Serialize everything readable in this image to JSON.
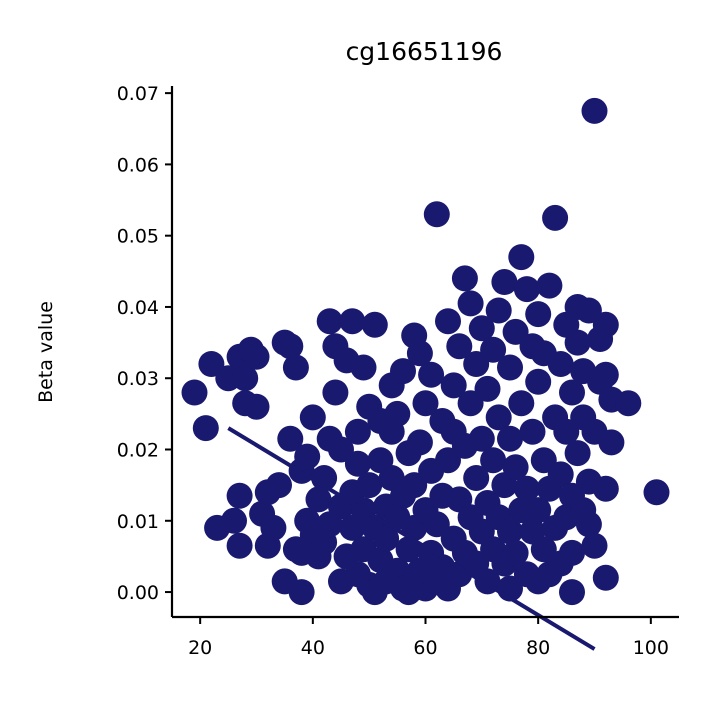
{
  "chart_data": {
    "type": "scatter",
    "title": "cg16651196",
    "xlabel": "",
    "ylabel": "Beta value",
    "xlim": [
      15,
      105
    ],
    "ylim": [
      -0.0035,
      0.071
    ],
    "x_ticks": [
      20,
      40,
      60,
      80,
      100
    ],
    "y_ticks": [
      0.0,
      0.01,
      0.02,
      0.03,
      0.04,
      0.05,
      0.06,
      0.07
    ],
    "x_tick_labels": [
      "20",
      "40",
      "60",
      "80",
      "100"
    ],
    "y_tick_labels": [
      "0.00",
      "0.01",
      "0.02",
      "0.03",
      "0.04",
      "0.05",
      "0.06",
      "0.07"
    ],
    "grid": false,
    "color": "#191970",
    "trend_line": {
      "x": [
        25,
        90
      ],
      "y": [
        0.023,
        -0.008
      ]
    },
    "points": [
      [
        19,
        0.028
      ],
      [
        21,
        0.023
      ],
      [
        22,
        0.032
      ],
      [
        23,
        0.009
      ],
      [
        25,
        0.03
      ],
      [
        26,
        0.01
      ],
      [
        27,
        0.0065
      ],
      [
        27,
        0.0135
      ],
      [
        27,
        0.033
      ],
      [
        28,
        0.0265
      ],
      [
        28,
        0.03
      ],
      [
        29,
        0.034
      ],
      [
        30,
        0.026
      ],
      [
        30,
        0.033
      ],
      [
        31,
        0.011
      ],
      [
        32,
        0.0065
      ],
      [
        32,
        0.014
      ],
      [
        33,
        0.009
      ],
      [
        34,
        0.015
      ],
      [
        35,
        0.0015
      ],
      [
        35,
        0.035
      ],
      [
        36,
        0.0215
      ],
      [
        36,
        0.0345
      ],
      [
        37,
        0.006
      ],
      [
        37,
        0.0315
      ],
      [
        38,
        0.0
      ],
      [
        38,
        0.0055
      ],
      [
        38,
        0.017
      ],
      [
        39,
        0.01
      ],
      [
        39,
        0.019
      ],
      [
        40,
        0.008
      ],
      [
        40,
        0.0245
      ],
      [
        41,
        0.005
      ],
      [
        41,
        0.013
      ],
      [
        42,
        0.016
      ],
      [
        42,
        0.007
      ],
      [
        43,
        0.0095
      ],
      [
        43,
        0.038
      ],
      [
        43,
        0.0215
      ],
      [
        44,
        0.0345
      ],
      [
        44,
        0.028
      ],
      [
        45,
        0.0015
      ],
      [
        45,
        0.012
      ],
      [
        45,
        0.02
      ],
      [
        46,
        0.005
      ],
      [
        46,
        0.0325
      ],
      [
        47,
        0.014
      ],
      [
        47,
        0.038
      ],
      [
        47,
        0.009
      ],
      [
        48,
        0.0025
      ],
      [
        48,
        0.018
      ],
      [
        48,
        0.0225
      ],
      [
        49,
        0.006
      ],
      [
        49,
        0.0315
      ],
      [
        49,
        0.0115
      ],
      [
        50,
        0.001
      ],
      [
        50,
        0.015
      ],
      [
        50,
        0.026
      ],
      [
        51,
        0.009
      ],
      [
        51,
        0.0375
      ],
      [
        51,
        0.0
      ],
      [
        52,
        0.0045
      ],
      [
        52,
        0.0185
      ],
      [
        52,
        0.024
      ],
      [
        53,
        0.0015
      ],
      [
        53,
        0.012
      ],
      [
        53,
        0.0075
      ],
      [
        54,
        0.016
      ],
      [
        54,
        0.029
      ],
      [
        54,
        0.0225
      ],
      [
        55,
        0.003
      ],
      [
        55,
        0.0105
      ],
      [
        55,
        0.025
      ],
      [
        56,
        0.0005
      ],
      [
        56,
        0.0135
      ],
      [
        56,
        0.031
      ],
      [
        57,
        0.006
      ],
      [
        57,
        0.0195
      ],
      [
        57,
        0.0
      ],
      [
        58,
        0.009
      ],
      [
        58,
        0.036
      ],
      [
        58,
        0.015
      ],
      [
        59,
        0.003
      ],
      [
        59,
        0.021
      ],
      [
        59,
        0.0335
      ],
      [
        60,
        0.0005
      ],
      [
        60,
        0.0115
      ],
      [
        60,
        0.0265
      ],
      [
        61,
        0.0055
      ],
      [
        61,
        0.017
      ],
      [
        61,
        0.0305
      ],
      [
        62,
        0.0015
      ],
      [
        62,
        0.0095
      ],
      [
        62,
        0.053
      ],
      [
        63,
        0.0135
      ],
      [
        63,
        0.024
      ],
      [
        63,
        0.0035
      ],
      [
        64,
        0.0005
      ],
      [
        64,
        0.0185
      ],
      [
        64,
        0.038
      ],
      [
        65,
        0.0075
      ],
      [
        65,
        0.0225
      ],
      [
        65,
        0.029
      ],
      [
        66,
        0.0025
      ],
      [
        66,
        0.013
      ],
      [
        66,
        0.0345
      ],
      [
        67,
        0.0055
      ],
      [
        67,
        0.0205
      ],
      [
        67,
        0.044
      ],
      [
        68,
        0.0105
      ],
      [
        68,
        0.0265
      ],
      [
        68,
        0.0405
      ],
      [
        69,
        0.004
      ],
      [
        69,
        0.016
      ],
      [
        69,
        0.032
      ],
      [
        70,
        0.0085
      ],
      [
        70,
        0.0215
      ],
      [
        70,
        0.037
      ],
      [
        71,
        0.0015
      ],
      [
        71,
        0.0125
      ],
      [
        71,
        0.0285
      ],
      [
        72,
        0.006
      ],
      [
        72,
        0.0185
      ],
      [
        72,
        0.034
      ],
      [
        73,
        0.0105
      ],
      [
        73,
        0.0245
      ],
      [
        73,
        0.0395
      ],
      [
        74,
        0.004
      ],
      [
        74,
        0.015
      ],
      [
        74,
        0.0435
      ],
      [
        75,
        0.0005
      ],
      [
        75,
        0.0085
      ],
      [
        75,
        0.0215
      ],
      [
        75,
        0.0315
      ],
      [
        76,
        0.0055
      ],
      [
        76,
        0.0175
      ],
      [
        76,
        0.0365
      ],
      [
        77,
        0.0115
      ],
      [
        77,
        0.0265
      ],
      [
        77,
        0.047
      ],
      [
        78,
        0.0025
      ],
      [
        78,
        0.0145
      ],
      [
        78,
        0.0425
      ],
      [
        79,
        0.0085
      ],
      [
        79,
        0.0225
      ],
      [
        79,
        0.0345
      ],
      [
        80,
        0.0015
      ],
      [
        80,
        0.0115
      ],
      [
        80,
        0.0295
      ],
      [
        80,
        0.039
      ],
      [
        81,
        0.006
      ],
      [
        81,
        0.0185
      ],
      [
        81,
        0.0335
      ],
      [
        82,
        0.0025
      ],
      [
        82,
        0.0145
      ],
      [
        82,
        0.043
      ],
      [
        83,
        0.009
      ],
      [
        83,
        0.0245
      ],
      [
        83,
        0.0525
      ],
      [
        84,
        0.004
      ],
      [
        84,
        0.0165
      ],
      [
        84,
        0.032
      ],
      [
        85,
        0.0105
      ],
      [
        85,
        0.0225
      ],
      [
        85,
        0.0375
      ],
      [
        86,
        0.0
      ],
      [
        86,
        0.0055
      ],
      [
        86,
        0.0135
      ],
      [
        86,
        0.028
      ],
      [
        87,
        0.0195
      ],
      [
        87,
        0.035
      ],
      [
        87,
        0.04
      ],
      [
        88,
        0.0115
      ],
      [
        88,
        0.0245
      ],
      [
        88,
        0.031
      ],
      [
        89,
        0.0095
      ],
      [
        89,
        0.0155
      ],
      [
        89,
        0.0395
      ],
      [
        90,
        0.0065
      ],
      [
        90,
        0.0225
      ],
      [
        90,
        0.0675
      ],
      [
        91,
        0.0295
      ],
      [
        91,
        0.0355
      ],
      [
        92,
        0.002
      ],
      [
        92,
        0.0145
      ],
      [
        92,
        0.0375
      ],
      [
        92,
        0.0305
      ],
      [
        93,
        0.021
      ],
      [
        93,
        0.027
      ],
      [
        96,
        0.0265
      ],
      [
        101,
        0.014
      ]
    ]
  }
}
